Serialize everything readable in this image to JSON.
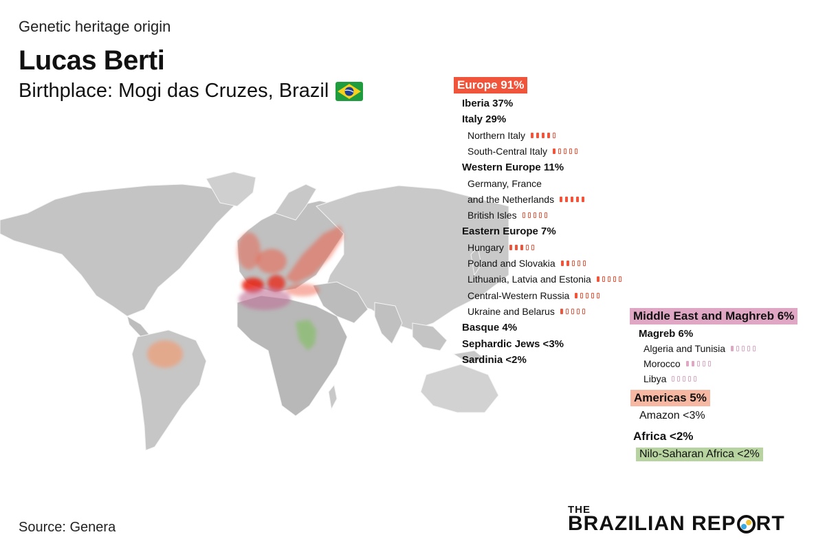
{
  "header": {
    "kicker": "Genetic heritage origin",
    "person_name": "Lucas Berti",
    "birthplace": "Birthplace: Mogi das Cruzes, Brazil"
  },
  "colors": {
    "europe": "#f0553b",
    "middle_east": "#e0a7c4",
    "americas": "#f6b8a2",
    "africa": "#b7d3a0",
    "land": "#c8c8c8"
  },
  "regions": {
    "europe": {
      "title": "Europe 91%",
      "items": [
        {
          "label": "Iberia 37%",
          "level": 1
        },
        {
          "label": "Italy 29%",
          "level": 1
        },
        {
          "label": "Northern Italy",
          "level": 2,
          "score": 4
        },
        {
          "label": "South-Central Italy",
          "level": 2,
          "score": 1
        },
        {
          "label": "Western Europe 11%",
          "level": 1
        },
        {
          "label": "Germany, France",
          "level": 2
        },
        {
          "label": "and the Netherlands",
          "level": 2,
          "score": 5
        },
        {
          "label": "British Isles",
          "level": 2,
          "score": 0
        },
        {
          "label": "Eastern Europe 7%",
          "level": 1
        },
        {
          "label": "Hungary",
          "level": 2,
          "score": 3
        },
        {
          "label": "Poland and Slovakia",
          "level": 2,
          "score": 2
        },
        {
          "label": "Lithuania, Latvia and Estonia",
          "level": 2,
          "score": 1
        },
        {
          "label": "Central-Western Russia",
          "level": 2,
          "score": 1
        },
        {
          "label": "Ukraine and Belarus",
          "level": 2,
          "score": 1
        },
        {
          "label": "Basque 4%",
          "level": 1
        },
        {
          "label": "Sephardic Jews <3%",
          "level": 1
        },
        {
          "label": "Sardinia <2%",
          "level": 1
        }
      ]
    },
    "middle_east": {
      "title": "Middle East and Maghreb 6%",
      "items": [
        {
          "label": "Magreb  6%",
          "level": 1
        },
        {
          "label": "Algeria and Tunisia",
          "level": 2,
          "score": 1
        },
        {
          "label": "Morocco",
          "level": 2,
          "score": 2
        },
        {
          "label": "Libya",
          "level": 2,
          "score": 0
        }
      ]
    },
    "americas": {
      "title": "Americas 5%",
      "items": [
        {
          "label": "Amazon <3%",
          "level": 1
        }
      ]
    },
    "africa": {
      "title": "Africa  <2%",
      "items": [
        {
          "label": "Nilo-Saharan Africa <2%",
          "level": 1
        }
      ]
    }
  },
  "footer": {
    "source": "Source: Genera",
    "logo_top": "THE",
    "logo_left": "BRAZILIAN REP",
    "logo_right": "RT"
  }
}
